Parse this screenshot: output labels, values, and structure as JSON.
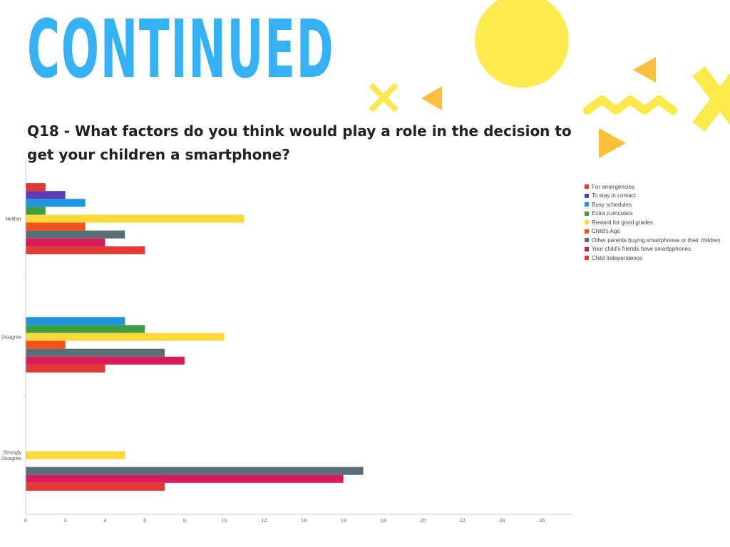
{
  "heading": "CONTINUED",
  "question": "Q18 - What factors do you think would play a role in the decision to get your children a smartphone?",
  "decoration": {
    "sun_color": "#fcea4f",
    "accent_yellow": "#fce94a",
    "accent_orange": "#fbc03b"
  },
  "chart_data": {
    "type": "bar",
    "orientation": "horizontal",
    "categories": [
      "Neither",
      "Disagree",
      "Strongly Disagree"
    ],
    "series": [
      {
        "name": "For emergencies",
        "color": "#e03a36",
        "values": [
          1,
          0,
          0
        ]
      },
      {
        "name": "To stay in contact",
        "color": "#5f3db4",
        "values": [
          2,
          0,
          0
        ]
      },
      {
        "name": "Busy schedules",
        "color": "#1e96df",
        "values": [
          3,
          5,
          0
        ]
      },
      {
        "name": "Extra curriculars",
        "color": "#3f9e45",
        "values": [
          1,
          6,
          0
        ]
      },
      {
        "name": "Reward for good grades",
        "color": "#fcd93a",
        "values": [
          11,
          10,
          5
        ]
      },
      {
        "name": "Child's Age",
        "color": "#f4511e",
        "values": [
          3,
          2,
          0
        ]
      },
      {
        "name": "Other parents buying smartphones or their children",
        "color": "#5a6e78",
        "values": [
          5,
          7,
          17
        ]
      },
      {
        "name": "Your child's friends have smartpphones",
        "color": "#d81b5a",
        "values": [
          4,
          8,
          16
        ]
      },
      {
        "name": "Child Independence",
        "color": "#e53935",
        "values": [
          6,
          4,
          7
        ]
      }
    ],
    "x_ticks": [
      0,
      2,
      4,
      6,
      8,
      10,
      12,
      14,
      16,
      18,
      20,
      22,
      24,
      26
    ],
    "xlim": [
      0,
      27.5
    ],
    "grid": false,
    "legend_position": "right",
    "title": "",
    "xlabel": "",
    "ylabel": ""
  }
}
